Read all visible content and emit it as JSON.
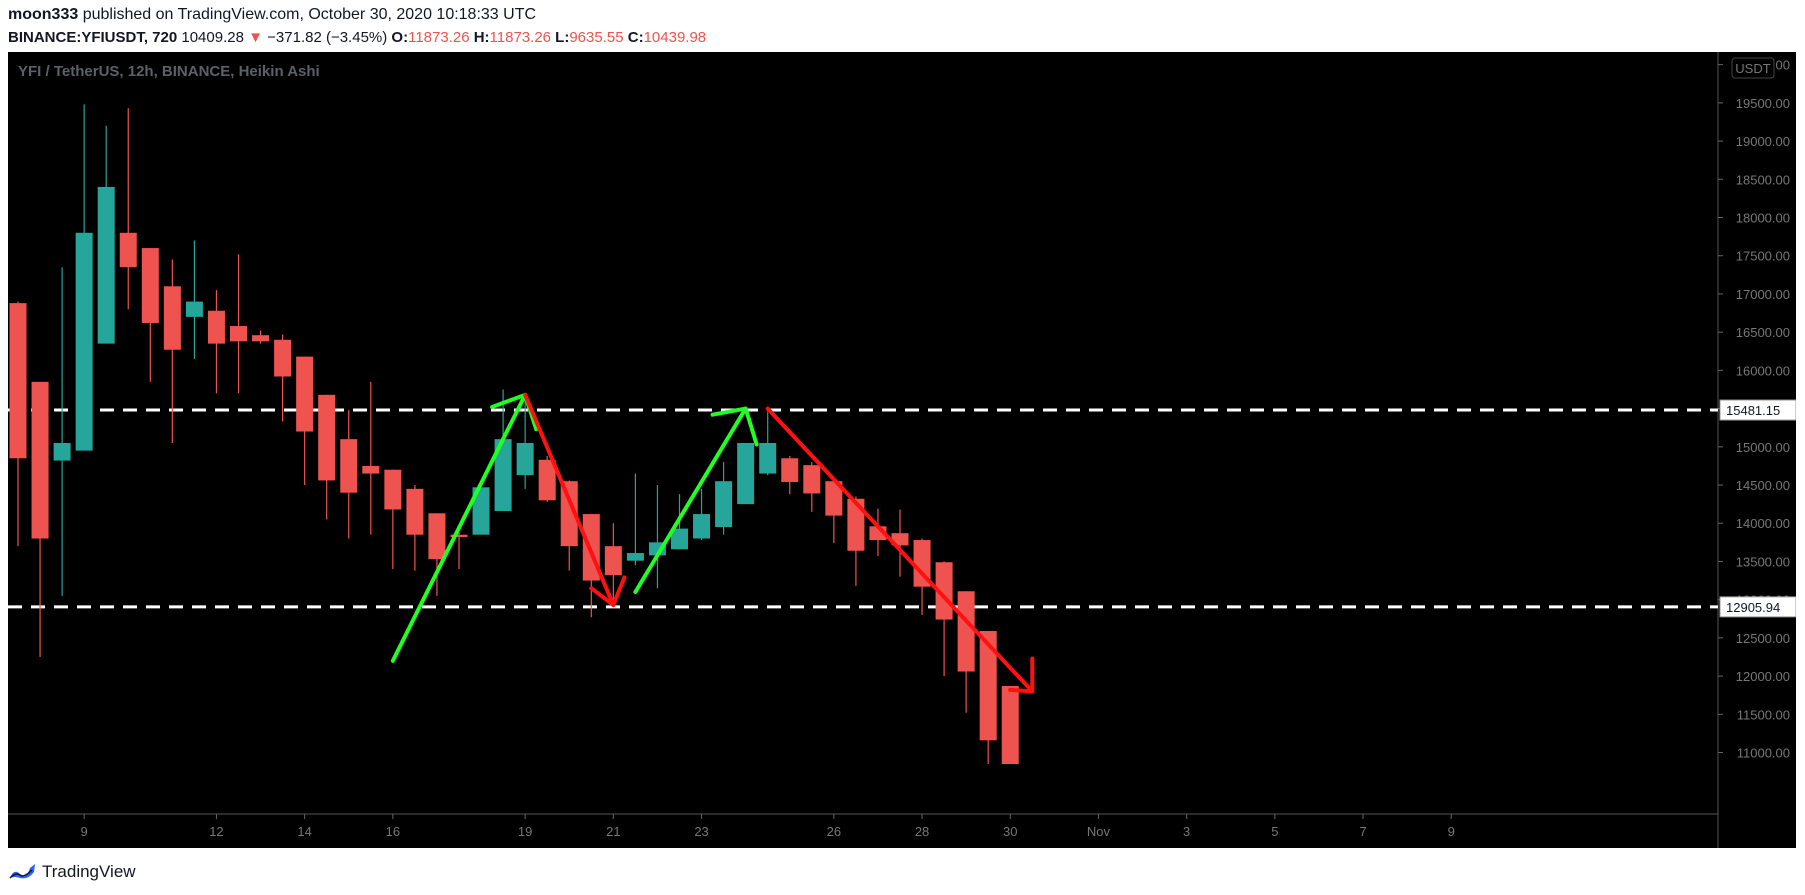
{
  "header": {
    "author": "moon333",
    "published_text": "published on TradingView.com, October 30, 2020 10:18:33 UTC",
    "symbol": "BINANCE:YFIUSDT, 720",
    "last": "10409.28",
    "change_arrow": "▼",
    "change": "−371.82 (−3.45%)",
    "o_label": "O:",
    "o_val": "11873.26",
    "h_label": "H:",
    "h_val": "11873.26",
    "l_label": "L:",
    "l_val": "9635.55",
    "c_label": "C:",
    "c_val": "10439.98"
  },
  "footer": {
    "brand": "TradingView",
    "logo_icon": "tradingview-logo-icon"
  },
  "colors": {
    "up": "#26a69a",
    "down": "#ef5350",
    "arrow_green": "#22ff22",
    "arrow_red": "#ff1111",
    "background": "#000000"
  },
  "chart_data": {
    "type": "candlestick",
    "title": "YFI / TetherUS, 12h, BINANCE, Heikin Ashi",
    "currency_label": "USDT",
    "ylim": [
      10850,
      20100
    ],
    "yticks": [
      11000,
      11500,
      12000,
      12500,
      13000,
      13500,
      14000,
      14500,
      15000,
      15500,
      16000,
      16500,
      17000,
      17500,
      18000,
      18500,
      19000,
      19500,
      20000
    ],
    "ytick_labels": [
      "11000.00",
      "11500.00",
      "12000.00",
      "12500.00",
      "13000.00",
      "13500.00",
      "14000.00",
      "14500.00",
      "15000.00",
      "15500.00",
      "16000.00",
      "16500.00",
      "17000.00",
      "17500.00",
      "18000.00",
      "18500.00",
      "19000.00",
      "19500.00",
      "20000.00"
    ],
    "x_dates": [
      "2020-10-07T12",
      "2020-10-08",
      "2020-10-08T12",
      "2020-10-09",
      "2020-10-09T12",
      "2020-10-10",
      "2020-10-10T12",
      "2020-10-11",
      "2020-10-11T12",
      "2020-10-12",
      "2020-10-12T12",
      "2020-10-13",
      "2020-10-13T12",
      "2020-10-14",
      "2020-10-14T12",
      "2020-10-15",
      "2020-10-15T12",
      "2020-10-16",
      "2020-10-16T12",
      "2020-10-17",
      "2020-10-17T12",
      "2020-10-18",
      "2020-10-18T12",
      "2020-10-19",
      "2020-10-19T12",
      "2020-10-20",
      "2020-10-20T12",
      "2020-10-21",
      "2020-10-21T12",
      "2020-10-22",
      "2020-10-22T12",
      "2020-10-23",
      "2020-10-23T12",
      "2020-10-24",
      "2020-10-24T12",
      "2020-10-25",
      "2020-10-25T12",
      "2020-10-26",
      "2020-10-26T12",
      "2020-10-27",
      "2020-10-27T12",
      "2020-10-28",
      "2020-10-28T12",
      "2020-10-29",
      "2020-10-29T12",
      "2020-10-30"
    ],
    "candles": [
      {
        "o": 16880,
        "h": 16900,
        "l": 13700,
        "c": 14850
      },
      {
        "o": 15850,
        "h": 15850,
        "l": 12250,
        "c": 13800
      },
      {
        "o": 14820,
        "h": 17350,
        "l": 13050,
        "c": 15050
      },
      {
        "o": 14950,
        "h": 19480,
        "l": 14950,
        "c": 17800
      },
      {
        "o": 16350,
        "h": 19200,
        "l": 16350,
        "c": 18400
      },
      {
        "o": 17800,
        "h": 19430,
        "l": 16800,
        "c": 17350
      },
      {
        "o": 17600,
        "h": 17600,
        "l": 15850,
        "c": 16620
      },
      {
        "o": 17100,
        "h": 17450,
        "l": 15050,
        "c": 16270
      },
      {
        "o": 16700,
        "h": 17700,
        "l": 16150,
        "c": 16900
      },
      {
        "o": 16780,
        "h": 17050,
        "l": 15700,
        "c": 16350
      },
      {
        "o": 16580,
        "h": 17520,
        "l": 15700,
        "c": 16380
      },
      {
        "o": 16460,
        "h": 16520,
        "l": 16350,
        "c": 16380
      },
      {
        "o": 16400,
        "h": 16470,
        "l": 15330,
        "c": 15920
      },
      {
        "o": 16180,
        "h": 16180,
        "l": 14500,
        "c": 15200
      },
      {
        "o": 15680,
        "h": 15680,
        "l": 14050,
        "c": 14560
      },
      {
        "o": 15100,
        "h": 15480,
        "l": 13800,
        "c": 14400
      },
      {
        "o": 14750,
        "h": 15850,
        "l": 13850,
        "c": 14650
      },
      {
        "o": 14700,
        "h": 14700,
        "l": 13400,
        "c": 14180
      },
      {
        "o": 14450,
        "h": 14500,
        "l": 13380,
        "c": 13850
      },
      {
        "o": 14130,
        "h": 14130,
        "l": 13050,
        "c": 13530
      },
      {
        "o": 13850,
        "h": 13880,
        "l": 13400,
        "c": 13820
      },
      {
        "o": 13850,
        "h": 14450,
        "l": 13870,
        "c": 14470
      },
      {
        "o": 14160,
        "h": 15750,
        "l": 14160,
        "c": 15100
      },
      {
        "o": 14630,
        "h": 15690,
        "l": 14450,
        "c": 15050
      },
      {
        "o": 14830,
        "h": 14880,
        "l": 14280,
        "c": 14300
      },
      {
        "o": 14550,
        "h": 14560,
        "l": 13380,
        "c": 13700
      },
      {
        "o": 14120,
        "h": 14120,
        "l": 12770,
        "c": 13250
      },
      {
        "o": 13700,
        "h": 14000,
        "l": 12980,
        "c": 13320
      },
      {
        "o": 13510,
        "h": 14650,
        "l": 13450,
        "c": 13610
      },
      {
        "o": 13580,
        "h": 14500,
        "l": 13150,
        "c": 13750
      },
      {
        "o": 13660,
        "h": 14380,
        "l": 13660,
        "c": 13930
      },
      {
        "o": 13800,
        "h": 14450,
        "l": 13780,
        "c": 14120
      },
      {
        "o": 13950,
        "h": 14800,
        "l": 13850,
        "c": 14550
      },
      {
        "o": 14250,
        "h": 15030,
        "l": 14250,
        "c": 15050
      },
      {
        "o": 14650,
        "h": 15450,
        "l": 14630,
        "c": 15050
      },
      {
        "o": 14850,
        "h": 14880,
        "l": 14380,
        "c": 14540
      },
      {
        "o": 14760,
        "h": 14800,
        "l": 14150,
        "c": 14390
      },
      {
        "o": 14550,
        "h": 14560,
        "l": 13740,
        "c": 14100
      },
      {
        "o": 14320,
        "h": 14350,
        "l": 13180,
        "c": 13640
      },
      {
        "o": 13960,
        "h": 14190,
        "l": 13570,
        "c": 13780
      },
      {
        "o": 13870,
        "h": 14180,
        "l": 13300,
        "c": 13710
      },
      {
        "o": 13780,
        "h": 13800,
        "l": 12800,
        "c": 13170
      },
      {
        "o": 13490,
        "h": 13500,
        "l": 12000,
        "c": 12740
      },
      {
        "o": 13110,
        "h": 13110,
        "l": 11520,
        "c": 12060
      },
      {
        "o": 12590,
        "h": 12590,
        "l": 10850,
        "c": 11160
      },
      {
        "o": 11870,
        "h": 11870,
        "l": 9640,
        "c": 10440
      }
    ],
    "horizontal_lines": [
      {
        "y": 15481.15,
        "label": "15481.15"
      },
      {
        "y": 12905.94,
        "label": "12905.94"
      }
    ],
    "xtick_labels": [
      {
        "label": "9",
        "date": "2020-10-09"
      },
      {
        "label": "12",
        "date": "2020-10-12"
      },
      {
        "label": "14",
        "date": "2020-10-14"
      },
      {
        "label": "16",
        "date": "2020-10-16"
      },
      {
        "label": "19",
        "date": "2020-10-19"
      },
      {
        "label": "21",
        "date": "2020-10-21"
      },
      {
        "label": "23",
        "date": "2020-10-23"
      },
      {
        "label": "26",
        "date": "2020-10-26"
      },
      {
        "label": "28",
        "date": "2020-10-28"
      },
      {
        "label": "30",
        "date": "2020-10-30"
      },
      {
        "label": "Nov",
        "date": "2020-11-01"
      },
      {
        "label": "3",
        "date": "2020-11-03"
      },
      {
        "label": "5",
        "date": "2020-11-05"
      },
      {
        "label": "7",
        "date": "2020-11-07"
      },
      {
        "label": "9",
        "date": "2020-11-09"
      }
    ],
    "annotations": [
      {
        "color": "green",
        "points": [
          [
            "2020-10-16",
            12200
          ],
          [
            "2020-10-19",
            15680
          ]
        ],
        "head": [
          [
            "2020-10-18T06",
            15520
          ],
          [
            "2020-10-19",
            15680
          ],
          [
            "2020-10-19T06",
            15230
          ]
        ]
      },
      {
        "color": "red",
        "points": [
          [
            "2020-10-19",
            15680
          ],
          [
            "2020-10-21",
            12930
          ]
        ],
        "head": [
          [
            "2020-10-20T12",
            13150
          ],
          [
            "2020-10-21",
            12930
          ],
          [
            "2020-10-21T06",
            13290
          ]
        ]
      },
      {
        "color": "green",
        "points": [
          [
            "2020-10-21T12",
            13100
          ],
          [
            "2020-10-24",
            15500
          ]
        ],
        "head": [
          [
            "2020-10-23T06",
            15420
          ],
          [
            "2020-10-24",
            15500
          ],
          [
            "2020-10-24T06",
            15030
          ]
        ]
      },
      {
        "color": "red",
        "points": [
          [
            "2020-10-24T12",
            15500
          ],
          [
            "2020-10-30T12",
            11800
          ]
        ],
        "head": [
          [
            "2020-10-30",
            11820
          ],
          [
            "2020-10-30T12",
            11800
          ],
          [
            "2020-10-30T12",
            12230
          ]
        ]
      }
    ]
  }
}
